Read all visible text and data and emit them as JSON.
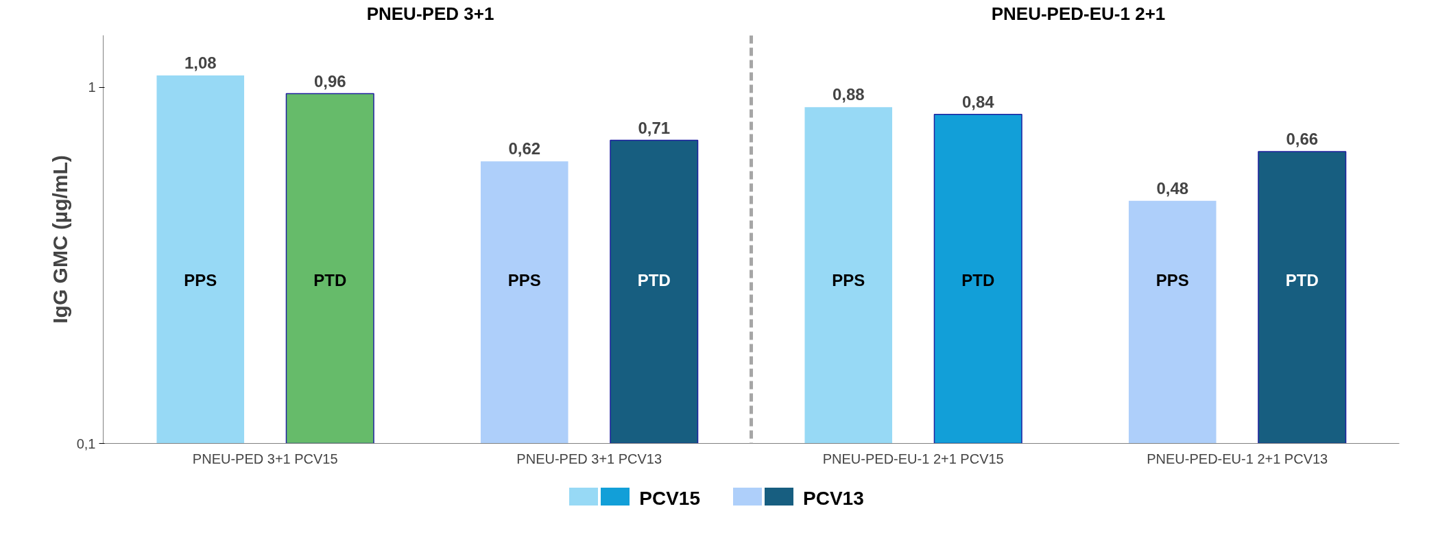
{
  "chart_data": {
    "type": "bar",
    "ylabel": "IgG GMC (µg/mL)",
    "categories": [
      "PNEU-PED 3+1 PCV15",
      "PNEU-PED 3+1 PCV13",
      "PNEU-PED-EU-1 2+1 PCV15",
      "PNEU-PED-EU-1 2+1 PCV13"
    ],
    "series": [
      {
        "name": "PPS",
        "colors": [
          "#97d9f5",
          "#aecffa",
          "#97d9f5",
          "#aecffa"
        ],
        "values": [
          1.08,
          0.62,
          0.88,
          0.48
        ],
        "value_labels": [
          "1,08",
          "0,62",
          "0,88",
          "0,48"
        ]
      },
      {
        "name": "PTD",
        "colors": [
          "#66bb6a",
          "#175e80",
          "#129fd8",
          "#175e80"
        ],
        "values": [
          0.96,
          0.71,
          0.84,
          0.66
        ],
        "value_labels": [
          "0,96",
          "0,71",
          "0,84",
          "0,66"
        ]
      }
    ],
    "log": true,
    "ylim": [
      0.1,
      1.4
    ],
    "yticks": [
      {
        "value": 0.1,
        "label": "0,1"
      },
      1
    ],
    "grid": false,
    "legend": "bottom",
    "annotations": [
      "PNEU-PED 3+1",
      "PNEU-PED-EU-1 2+1",
      "PCV15",
      "PCV13"
    ]
  }
}
